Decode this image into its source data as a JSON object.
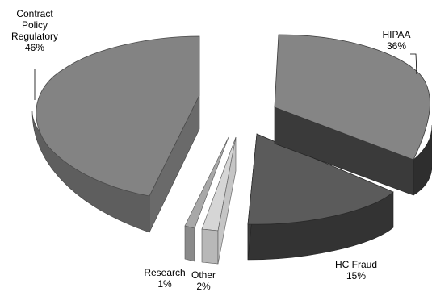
{
  "chart_data": {
    "type": "pie",
    "style": "3d-exploded",
    "categories": [
      "HIPAA",
      "HC Fraud",
      "Other",
      "Research",
      "Contract Policy Regulatory"
    ],
    "values": [
      36,
      15,
      2,
      1,
      46
    ],
    "value_labels": [
      "36%",
      "15%",
      "2%",
      "1%",
      "46%"
    ],
    "colors": {
      "HIPAA": "#4a4a4a",
      "HC Fraud": "#3a3a3a",
      "Other": "#c8c8c8",
      "Research": "#9a9a9a",
      "Contract Policy Regulatory": "#808080"
    },
    "legend": "none",
    "labels": {
      "hipaa": [
        "HIPAA",
        "36%"
      ],
      "hcfraud": [
        "HC Fraud",
        "15%"
      ],
      "other": [
        "Other",
        "2%"
      ],
      "research": [
        "Research",
        "1%"
      ],
      "contract": [
        "Contract",
        "Policy",
        "Regulatory",
        "46%"
      ]
    }
  }
}
